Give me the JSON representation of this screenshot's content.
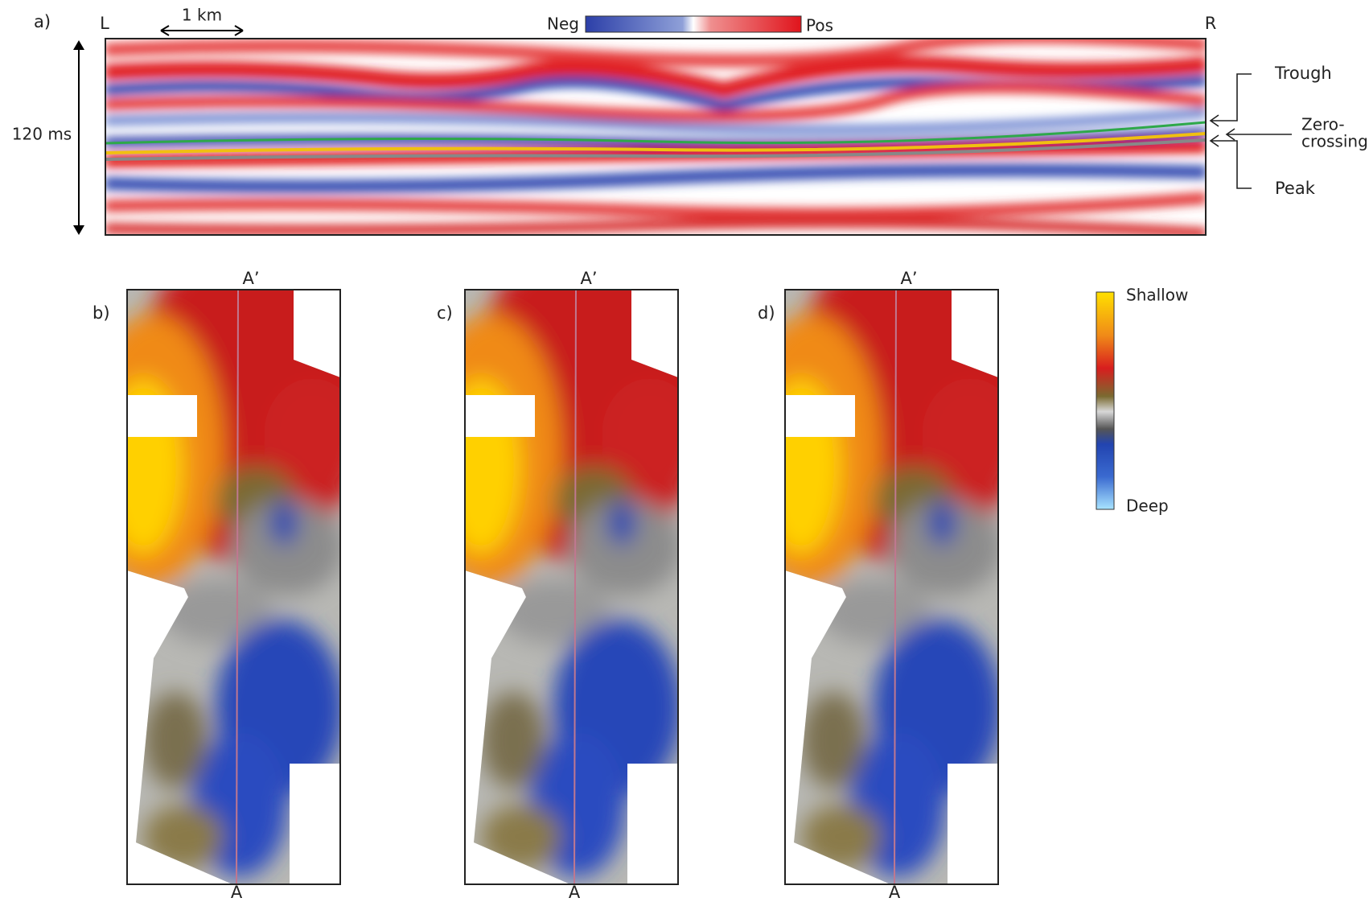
{
  "panel_a": {
    "label": "a)",
    "left": "L",
    "right": "R",
    "scale_bar": "1 km",
    "colorbar": {
      "neg": "Neg",
      "pos": "Pos"
    },
    "time_label": "120 ms",
    "annotations": {
      "trough": "Trough",
      "zero_crossing": [
        "Zero-",
        "crossing"
      ],
      "peak": "Peak"
    }
  },
  "maps": [
    {
      "label": "b)",
      "top": "A’",
      "bottom": "A"
    },
    {
      "label": "c)",
      "top": "A’",
      "bottom": "A"
    },
    {
      "label": "d)",
      "top": "A’",
      "bottom": "A"
    }
  ],
  "depth_colorbar": {
    "top": "Shallow",
    "bottom": "Deep"
  }
}
